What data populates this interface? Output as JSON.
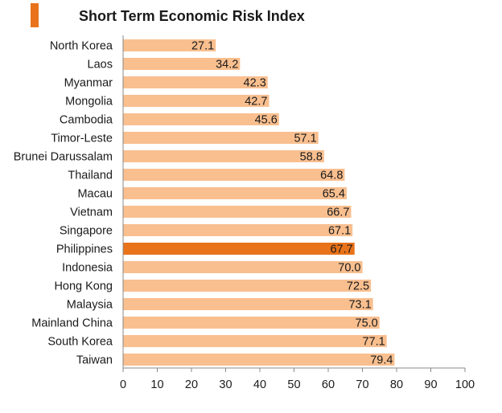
{
  "chart_data": {
    "type": "bar",
    "orientation": "horizontal",
    "title": "Short Term Economic Risk Index",
    "categories": [
      "North Korea",
      "Laos",
      "Myanmar",
      "Mongolia",
      "Cambodia",
      "Timor-Leste",
      "Brunei Darussalam",
      "Thailand",
      "Macau",
      "Vietnam",
      "Singapore",
      "Philippines",
      "Indonesia",
      "Hong Kong",
      "Malaysia",
      "Mainland China",
      "South Korea",
      "Taiwan"
    ],
    "values": [
      27.1,
      34.2,
      42.3,
      42.7,
      45.6,
      57.1,
      58.8,
      64.8,
      65.4,
      66.7,
      67.1,
      67.7,
      70.0,
      72.5,
      73.1,
      75.0,
      77.1,
      79.4
    ],
    "value_labels": [
      "27.1",
      "34.2",
      "42.3",
      "42.7",
      "45.6",
      "57.1",
      "58.8",
      "64.8",
      "65.4",
      "66.7",
      "67.1",
      "67.7",
      "70.0",
      "72.5",
      "73.1",
      "75.0",
      "77.1",
      "79.4"
    ],
    "highlight": "Philippines",
    "xlim": [
      0,
      100
    ],
    "x_ticks": [
      "0",
      "10",
      "20",
      "30",
      "40",
      "50",
      "60",
      "70",
      "80",
      "90",
      "100"
    ],
    "xlabel": "",
    "ylabel": "",
    "grid": false,
    "colors": {
      "bar": "#F9BF8F",
      "highlight": "#E8731A",
      "accent": "#E8731A",
      "axis": "#888888",
      "text": "#1a1a1a"
    }
  }
}
